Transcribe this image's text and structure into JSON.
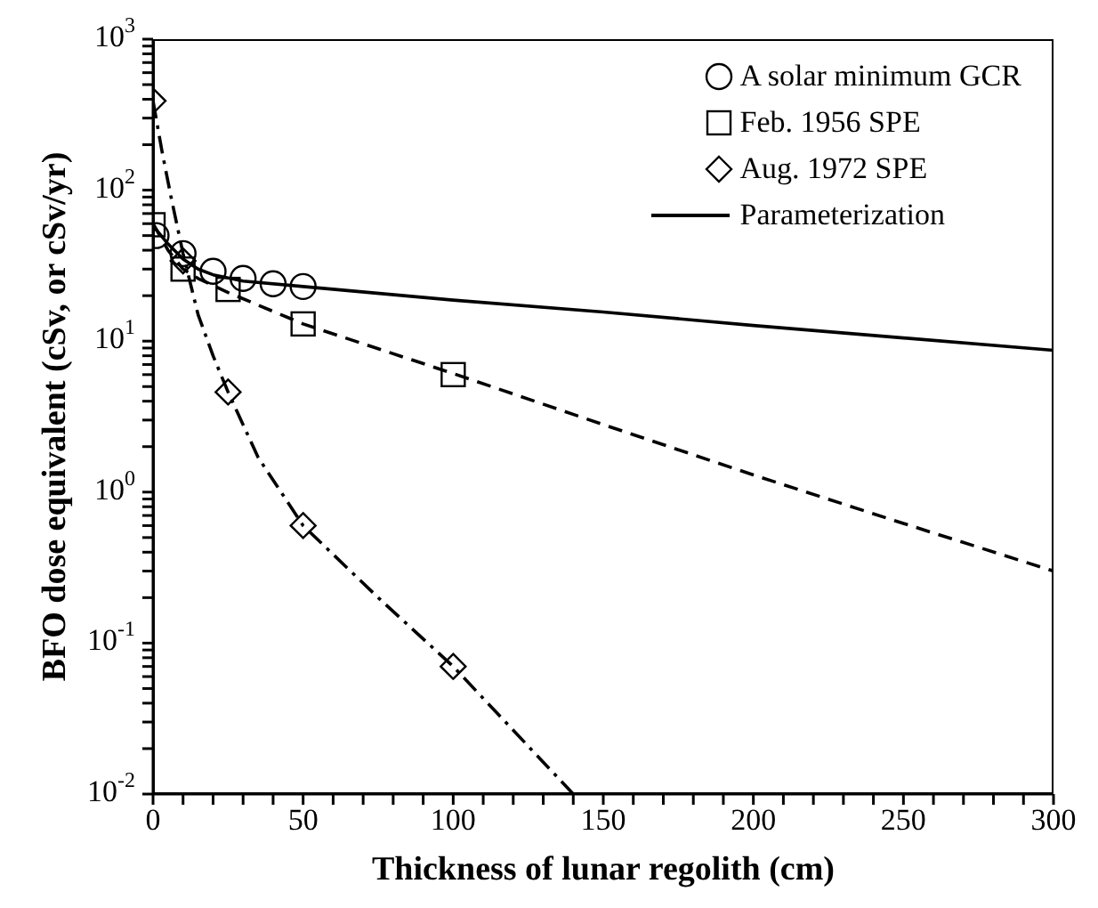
{
  "chart_data": {
    "type": "scatter",
    "xlabel": "Thickness of lunar regolith (cm)",
    "ylabel": "BFO dose equivalent (cSv, or cSv/yr)",
    "log": "y",
    "legend": "top right",
    "grid": false,
    "xlim": [
      0,
      300
    ],
    "xticks": [
      0,
      {
        "value": 10,
        "label": null
      },
      {
        "value": 20,
        "label": null
      },
      {
        "value": 30,
        "label": null
      },
      {
        "value": 40,
        "label": null
      },
      50,
      {
        "value": 60,
        "label": null
      },
      {
        "value": 70,
        "label": null
      },
      {
        "value": 80,
        "label": null
      },
      {
        "value": 90,
        "label": null
      },
      100,
      {
        "value": 110,
        "label": null
      },
      {
        "value": 120,
        "label": null
      },
      {
        "value": 130,
        "label": null
      },
      {
        "value": 140,
        "label": null
      },
      150,
      {
        "value": 160,
        "label": null
      },
      {
        "value": 170,
        "label": null
      },
      {
        "value": 180,
        "label": null
      },
      {
        "value": 190,
        "label": null
      },
      200,
      {
        "value": 210,
        "label": null
      },
      {
        "value": 220,
        "label": null
      },
      {
        "value": 230,
        "label": null
      },
      {
        "value": 240,
        "label": null
      },
      250,
      {
        "value": 260,
        "label": null
      },
      {
        "value": 270,
        "label": null
      },
      {
        "value": 280,
        "label": null
      },
      {
        "value": 290,
        "label": null
      },
      300
    ],
    "ylim": [
      0.01,
      1000
    ],
    "yticks": [
      {
        "value": 0.01,
        "label": "10$^{-2}$"
      },
      {
        "value": 0.02,
        "label": null
      },
      {
        "value": 0.03,
        "label": null
      },
      {
        "value": 0.04,
        "label": null
      },
      {
        "value": 0.05,
        "label": null
      },
      {
        "value": 0.06,
        "label": null
      },
      {
        "value": 0.07,
        "label": null
      },
      {
        "value": 0.08,
        "label": null
      },
      {
        "value": 0.09,
        "label": null
      },
      {
        "value": 0.1,
        "label": "10$^{-1}$"
      },
      {
        "value": 0.2,
        "label": null
      },
      {
        "value": 0.3,
        "label": null
      },
      {
        "value": 0.4,
        "label": null
      },
      {
        "value": 0.5,
        "label": null
      },
      {
        "value": 0.6,
        "label": null
      },
      {
        "value": 0.7,
        "label": null
      },
      {
        "value": 0.8,
        "label": null
      },
      {
        "value": 0.9,
        "label": null
      },
      {
        "value": 1,
        "label": "10$^{0}$"
      },
      {
        "value": 2,
        "label": null
      },
      {
        "value": 3,
        "label": null
      },
      {
        "value": 4,
        "label": null
      },
      {
        "value": 5,
        "label": null
      },
      {
        "value": 6,
        "label": null
      },
      {
        "value": 7,
        "label": null
      },
      {
        "value": 8,
        "label": null
      },
      {
        "value": 9,
        "label": null
      },
      {
        "value": 10,
        "label": "10$^{1}$"
      },
      {
        "value": 20,
        "label": null
      },
      {
        "value": 30,
        "label": null
      },
      {
        "value": 40,
        "label": null
      },
      {
        "value": 50,
        "label": null
      },
      {
        "value": 60,
        "label": null
      },
      {
        "value": 70,
        "label": null
      },
      {
        "value": 80,
        "label": null
      },
      {
        "value": 90,
        "label": null
      },
      {
        "value": 100,
        "label": "10$^{2}$"
      },
      {
        "value": 200,
        "label": null
      },
      {
        "value": 300,
        "label": null
      },
      {
        "value": 400,
        "label": null
      },
      {
        "value": 500,
        "label": null
      },
      {
        "value": 600,
        "label": null
      },
      {
        "value": 700,
        "label": null
      },
      {
        "value": 800,
        "label": null
      },
      {
        "value": 900,
        "label": null
      },
      {
        "value": 1000,
        "label": "10$^{3}$"
      }
    ],
    "series": [
      {
        "name": "A solar minimum GCR",
        "marker": "circle",
        "color": "#000000",
        "x": [
          1,
          10,
          20,
          30,
          40,
          50
        ],
        "values": [
          50,
          38,
          29,
          26,
          24,
          23
        ]
      },
      {
        "name": "Feb. 1956 SPE",
        "marker": "square",
        "color": "#000000",
        "x": [
          0,
          10,
          25,
          50,
          100
        ],
        "values": [
          59,
          30,
          22,
          13,
          6
        ]
      },
      {
        "name": "Aug. 1972 SPE",
        "marker": "diamond",
        "color": "#000000",
        "x": [
          0,
          10,
          25,
          50,
          100
        ],
        "values": [
          390,
          34,
          4.6,
          0.6,
          0.07
        ]
      },
      {
        "name": "Parameterization",
        "type": "line",
        "line_style": "solid",
        "color": "#000000",
        "x": [
          0,
          5,
          10,
          15,
          20,
          30,
          50,
          100,
          150,
          200,
          250,
          300
        ],
        "values": [
          58,
          44,
          35,
          30,
          27.5,
          25,
          23,
          18.7,
          15.6,
          12.7,
          10.5,
          8.7
        ]
      },
      {
        "type": "line",
        "line_style": "dashed",
        "color": "#000000",
        "x": [
          0,
          5,
          10,
          15,
          25,
          50,
          100,
          150,
          200,
          250,
          300
        ],
        "values": [
          60,
          40,
          30,
          26,
          21,
          13,
          6.1,
          2.8,
          1.3,
          0.62,
          0.3
        ]
      },
      {
        "type": "line",
        "line_style": "dashdot",
        "color": "#000000",
        "x": [
          0,
          3,
          6,
          10,
          15,
          20,
          25,
          35,
          50,
          75,
          100,
          140
        ],
        "values": [
          390,
          180,
          90,
          38,
          15,
          8,
          4.6,
          1.7,
          0.6,
          0.2,
          0.07,
          0.01
        ]
      }
    ]
  }
}
